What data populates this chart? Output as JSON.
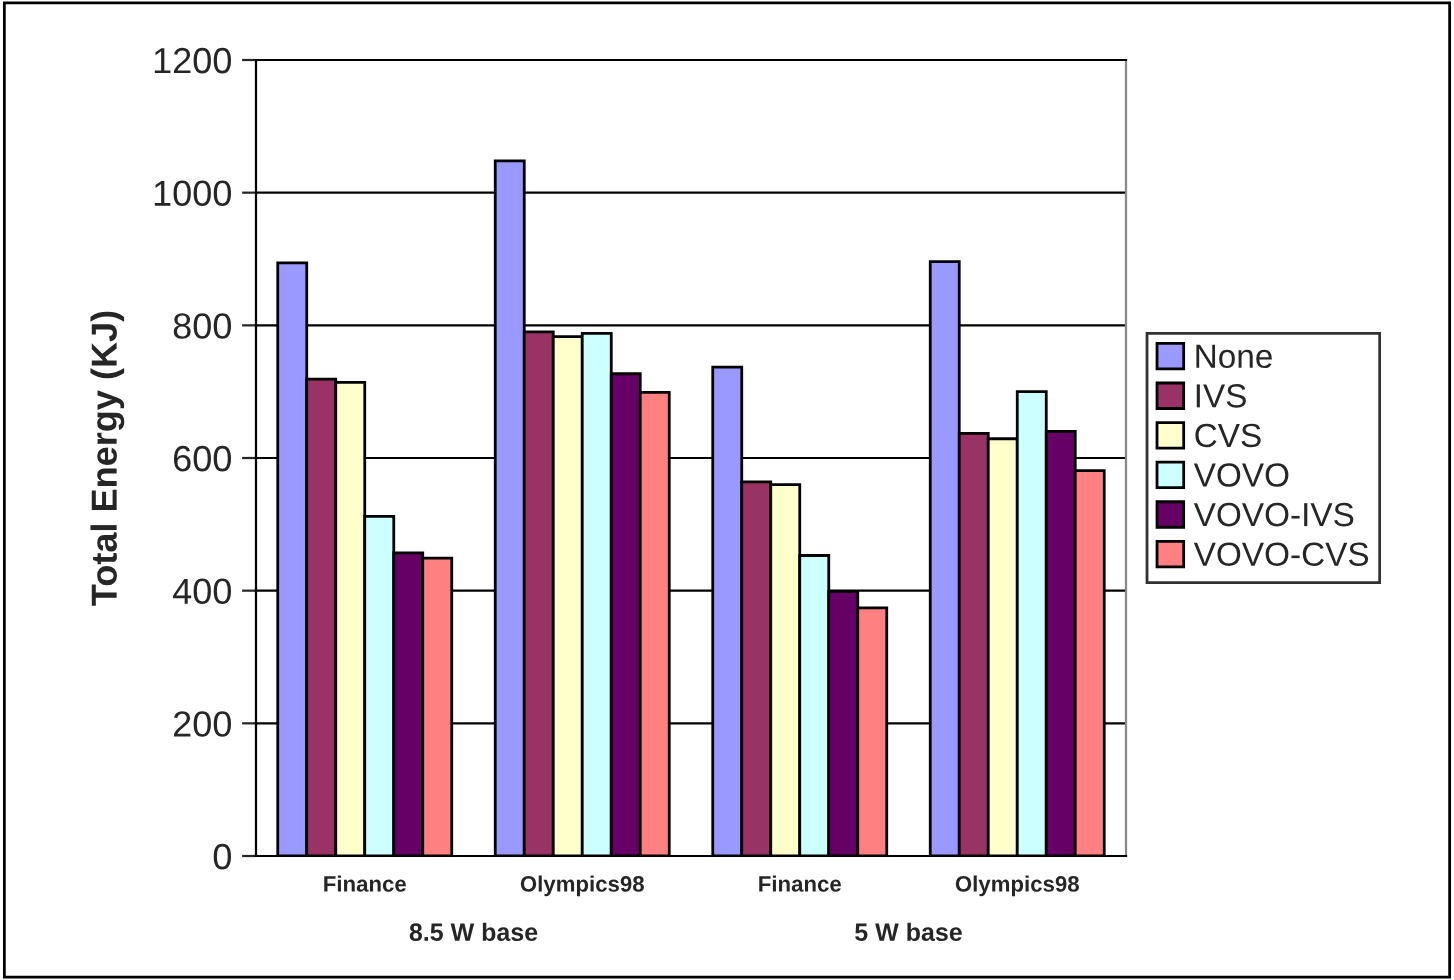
{
  "chart_data": {
    "type": "bar",
    "ylabel": "Total Energy (KJ)",
    "categories": [
      "Finance",
      "Olympics98",
      "Finance",
      "Olympics98"
    ],
    "annotations": [
      "8.5 W base",
      "5 W base"
    ],
    "series": [
      {
        "name": "None",
        "color": "#9999ff",
        "values": [
          894,
          1048,
          737,
          896
        ]
      },
      {
        "name": "IVS",
        "color": "#993366",
        "values": [
          719,
          790,
          564,
          637
        ]
      },
      {
        "name": "CVS",
        "color": "#ffffcc",
        "values": [
          714,
          783,
          560,
          629
        ]
      },
      {
        "name": "VOVO",
        "color": "#ccffff",
        "values": [
          512,
          788,
          453,
          700
        ]
      },
      {
        "name": "VOVO-IVS",
        "color": "#660066",
        "values": [
          457,
          727,
          399,
          640
        ]
      },
      {
        "name": "VOVO-CVS",
        "color": "#ff8080",
        "values": [
          449,
          699,
          374,
          581
        ]
      }
    ],
    "ylim": [
      0,
      1200
    ],
    "yticks": [
      0,
      200,
      400,
      600,
      800,
      1000,
      1200
    ],
    "grid": "y",
    "legend": "right"
  }
}
